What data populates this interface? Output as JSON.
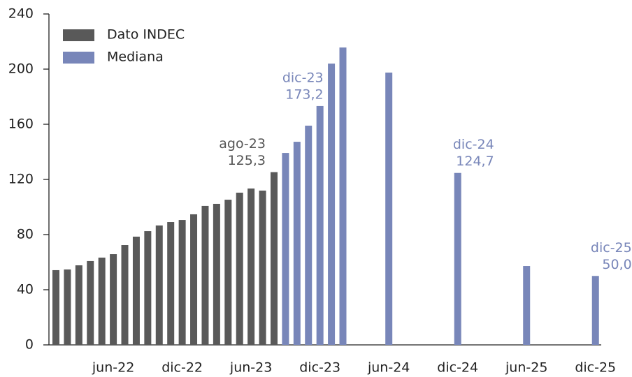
{
  "chart_data": {
    "type": "bar",
    "categories": [
      null,
      null,
      null,
      null,
      null,
      "jun-22",
      null,
      null,
      null,
      null,
      null,
      "dic-22",
      null,
      null,
      null,
      null,
      null,
      "jun-23",
      null,
      null,
      null,
      null,
      null,
      "dic-23",
      null,
      null,
      null,
      null,
      null,
      "jun-24",
      null,
      null,
      null,
      null,
      null,
      "dic-24",
      null,
      null,
      null,
      null,
      null,
      "jun-25",
      null,
      null,
      null,
      null,
      null,
      "dic-25"
    ],
    "series": [
      {
        "name": "Dato INDEC",
        "color": "#595959",
        "values": [
          54.2,
          54.7,
          57.7,
          60.8,
          63.3,
          65.8,
          72.4,
          78.5,
          82.5,
          86.6,
          89.1,
          90.6,
          94.7,
          100.8,
          102.3,
          105.3,
          110.4,
          113.4,
          111.9,
          125.3,
          null,
          null,
          null,
          null,
          null,
          null,
          null,
          null,
          null,
          null,
          null,
          null,
          null,
          null,
          null,
          null,
          null,
          null,
          null,
          null,
          null,
          null,
          null,
          null,
          null,
          null,
          null,
          null
        ],
        "value_labels": [
          null,
          null,
          null,
          null,
          null,
          null,
          null,
          null,
          null,
          null,
          null,
          null,
          null,
          null,
          null,
          null,
          null,
          null,
          null,
          "125,3",
          null,
          null,
          null,
          null,
          null,
          null,
          null,
          null,
          null,
          null,
          null,
          null,
          null,
          null,
          null,
          null,
          null,
          null,
          null,
          null,
          null,
          null,
          null,
          null,
          null,
          null,
          null,
          null
        ]
      },
      {
        "name": "Mediana",
        "color": "#7886b9",
        "values": [
          null,
          null,
          null,
          null,
          null,
          null,
          null,
          null,
          null,
          null,
          null,
          null,
          null,
          null,
          null,
          null,
          null,
          null,
          null,
          null,
          139.2,
          147.3,
          159.0,
          173.2,
          204.0,
          215.7,
          null,
          null,
          null,
          197.5,
          null,
          null,
          null,
          null,
          null,
          124.7,
          null,
          null,
          null,
          null,
          null,
          57.2,
          null,
          null,
          null,
          null,
          null,
          50.0
        ],
        "value_labels": [
          null,
          null,
          null,
          null,
          null,
          null,
          null,
          null,
          null,
          null,
          null,
          null,
          null,
          null,
          null,
          null,
          null,
          null,
          null,
          null,
          null,
          null,
          null,
          "173,2",
          null,
          null,
          null,
          null,
          null,
          null,
          null,
          null,
          null,
          null,
          null,
          "124,7",
          null,
          null,
          null,
          null,
          null,
          null,
          null,
          null,
          null,
          null,
          null,
          "50,0"
        ]
      }
    ],
    "annotations": [
      "ago-23",
      "dic-23",
      "dic-24",
      "dic-25"
    ],
    "ylim": [
      0,
      240
    ],
    "yticks": [
      0,
      40,
      80,
      120,
      160,
      200,
      240
    ],
    "grid": false,
    "legend": "top-left"
  }
}
